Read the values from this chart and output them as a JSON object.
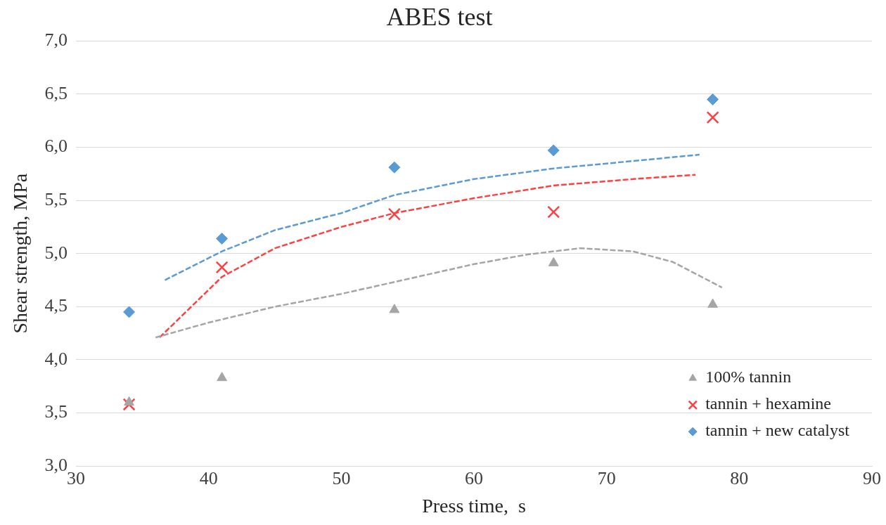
{
  "chart_data": {
    "type": "scatter",
    "title": "ABES test",
    "xlabel": "Press time,  s",
    "ylabel": "Shear strength, MPa",
    "xlim": [
      30,
      90
    ],
    "xticks": [
      30,
      40,
      50,
      60,
      70,
      80,
      90
    ],
    "ylim": [
      3,
      7
    ],
    "yticks": [
      {
        "value": 3,
        "label": "3,0"
      },
      {
        "value": 3.5,
        "label": "3,5"
      },
      {
        "value": 4,
        "label": "4,0"
      },
      {
        "value": 4.5,
        "label": "4,5"
      },
      {
        "value": 5,
        "label": "5,0"
      },
      {
        "value": 5.5,
        "label": "5,5"
      },
      {
        "value": 6,
        "label": "6,0"
      },
      {
        "value": 6.5,
        "label": "6,5"
      },
      {
        "value": 7,
        "label": "7,0"
      }
    ],
    "grid": "y",
    "legend": "bottom right",
    "series": [
      {
        "name": "100% tannin",
        "color": "#a5a5a5",
        "marker": "triangle",
        "x": [
          34,
          41,
          54,
          66,
          78
        ],
        "values": [
          3.6,
          3.83,
          4.47,
          4.91,
          4.52
        ]
      },
      {
        "name": "tannin + hexamine",
        "color": "#ff4040",
        "marker": "cross",
        "x": [
          34,
          41,
          54,
          66,
          78
        ],
        "values": [
          3.58,
          4.87,
          5.37,
          5.39,
          6.28
        ]
      },
      {
        "name": "tannin + new catalyst",
        "color": "#5b9bd5",
        "marker": "diamond",
        "x": [
          34,
          41,
          54,
          66,
          78
        ],
        "values": [
          4.45,
          5.14,
          5.81,
          5.97,
          6.45
        ]
      },
      {
        "type": "line",
        "color": "#a5a5a5",
        "marker": "none",
        "line_style": "dashed",
        "x": [
          36,
          40,
          45,
          50,
          55,
          60,
          64,
          68,
          72,
          75,
          78.7
        ],
        "values": [
          4.21,
          4.35,
          4.5,
          4.62,
          4.76,
          4.9,
          4.99,
          5.05,
          5.02,
          4.92,
          4.68
        ]
      },
      {
        "type": "line",
        "color": "#ff4040",
        "marker": "none",
        "line_style": "dashed",
        "x": [
          36.3,
          41,
          45,
          50,
          54,
          60,
          66,
          72,
          76.7
        ],
        "values": [
          4.21,
          4.78,
          5.05,
          5.25,
          5.38,
          5.52,
          5.64,
          5.7,
          5.74
        ]
      },
      {
        "type": "line",
        "color": "#5b9bd5",
        "marker": "none",
        "line_style": "dashed",
        "x": [
          36.7,
          41,
          45,
          50,
          54,
          60,
          66,
          72,
          77
        ],
        "values": [
          4.75,
          5.02,
          5.22,
          5.38,
          5.55,
          5.7,
          5.8,
          5.87,
          5.93
        ]
      }
    ]
  }
}
